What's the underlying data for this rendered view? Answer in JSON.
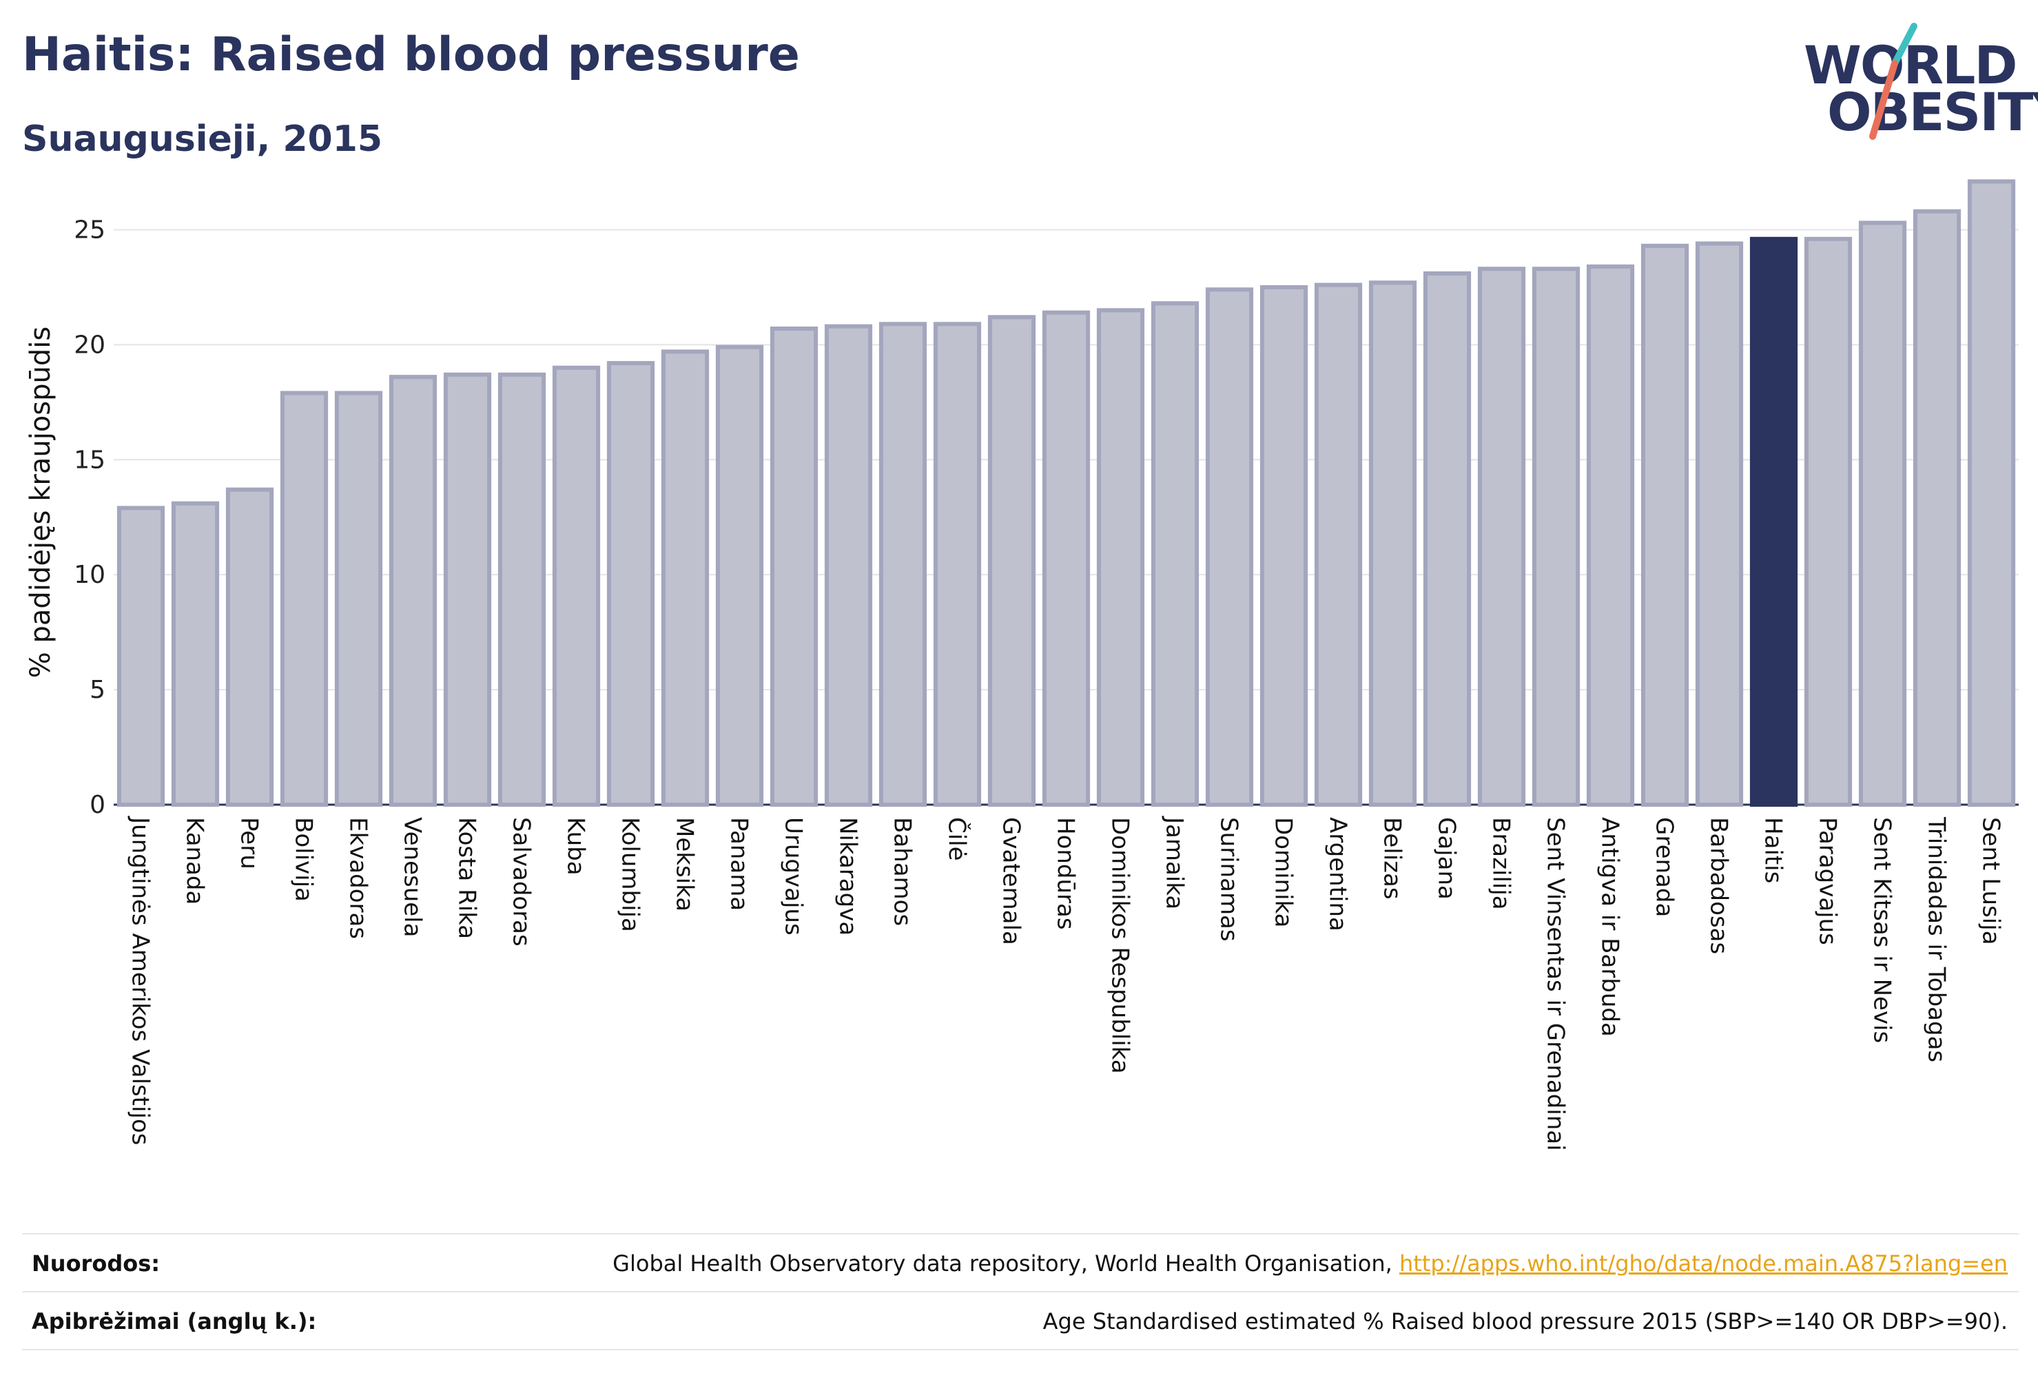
{
  "header": {
    "title": "Haitis: Raised blood pressure",
    "subtitle": "Suaugusieji, 2015"
  },
  "logo": {
    "line1": "WORLD",
    "line2": "OBESITY",
    "slash_colors": [
      "#3fbfbf",
      "#e8705a"
    ]
  },
  "colors": {
    "bar_fill": "#bfc1ce",
    "bar_stroke": "#a3a6bd",
    "highlight": "#2a345e",
    "grid": "#e4e4e8",
    "text": "#2a345e"
  },
  "chart_data": {
    "type": "bar",
    "ylabel": "% padidėjęs kraujospūdis",
    "ylim": [
      0,
      27.5
    ],
    "yticks": [
      0,
      5,
      10,
      15,
      20,
      25
    ],
    "grid": true,
    "highlight": "Haitis",
    "categories": [
      "Jungtinės Amerikos Valstijos",
      "Kanada",
      "Peru",
      "Bolivija",
      "Ekvadoras",
      "Venesuela",
      "Kosta Rika",
      "Salvadoras",
      "Kuba",
      "Kolumbija",
      "Meksika",
      "Panama",
      "Urugvajus",
      "Nikaragva",
      "Bahamos",
      "Čilė",
      "Gvatemala",
      "Hondūras",
      "Dominikos Respublika",
      "Jamaika",
      "Surinamas",
      "Dominika",
      "Argentina",
      "Belizas",
      "Gajana",
      "Brazilija",
      "Sent Vinsentas ir Grenadinai",
      "Antigva ir Barbuda",
      "Grenada",
      "Barbadosas",
      "Haitis",
      "Paragvajus",
      "Sent Kitsas ir Nevis",
      "Trinidadas ir Tobagas",
      "Sent Lusija"
    ],
    "values": [
      12.9,
      13.1,
      13.7,
      17.9,
      17.9,
      18.6,
      18.7,
      18.7,
      19.0,
      19.2,
      19.7,
      19.9,
      20.7,
      20.8,
      20.9,
      20.9,
      21.2,
      21.4,
      21.5,
      21.8,
      22.4,
      22.5,
      22.6,
      22.7,
      23.1,
      23.3,
      23.3,
      23.4,
      24.3,
      24.4,
      24.6,
      24.6,
      25.3,
      25.8,
      27.1
    ]
  },
  "footer": {
    "sources_label": "Nuorodos:",
    "sources_text": "Global Health Observatory data repository, World Health Organisation, ",
    "sources_link": "http://apps.who.int/gho/data/node.main.A875?lang=en",
    "definitions_label": "Apibrėžimai (anglų k.):",
    "definitions_text": "Age Standardised estimated % Raised blood pressure 2015 (SBP>=140 OR DBP>=90)."
  }
}
